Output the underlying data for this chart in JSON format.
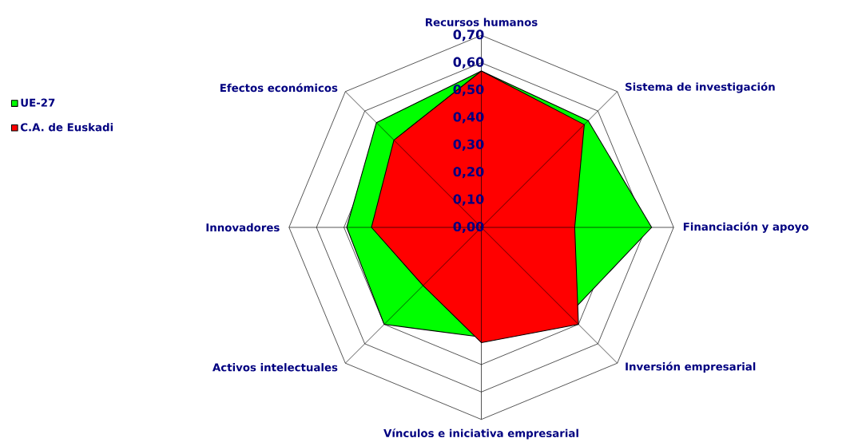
{
  "chart_data": {
    "type": "radar",
    "categories": [
      "Recursos humanos",
      "Sistema de investigación",
      "Financiación y apoyo",
      "Inversión empresarial",
      "Vínculos e iniciativa empresarial",
      "Activos intelectuales",
      "Innovadores",
      "Efectos económicos"
    ],
    "series": [
      {
        "name": "UE-27",
        "color": "#00ff00",
        "values": [
          0.57,
          0.55,
          0.62,
          0.45,
          0.4,
          0.5,
          0.49,
          0.54
        ]
      },
      {
        "name": "C.A. de Euskadi",
        "color": "#ff0000",
        "values": [
          0.57,
          0.53,
          0.34,
          0.5,
          0.42,
          0.3,
          0.4,
          0.45
        ]
      }
    ],
    "ylim": [
      0,
      0.7
    ],
    "yticks": [
      {
        "value": 0,
        "label": "0,00"
      },
      {
        "value": 0.1,
        "label": "0,10"
      },
      {
        "value": 0.2,
        "label": "0,20"
      },
      {
        "value": 0.3,
        "label": "0,30"
      },
      {
        "value": 0.4,
        "label": "0,40"
      },
      {
        "value": 0.5,
        "label": "0,50"
      },
      {
        "value": 0.6,
        "label": "0,60"
      },
      {
        "value": 0.7,
        "label": "0,70"
      }
    ],
    "grid": true,
    "legend": "left"
  }
}
